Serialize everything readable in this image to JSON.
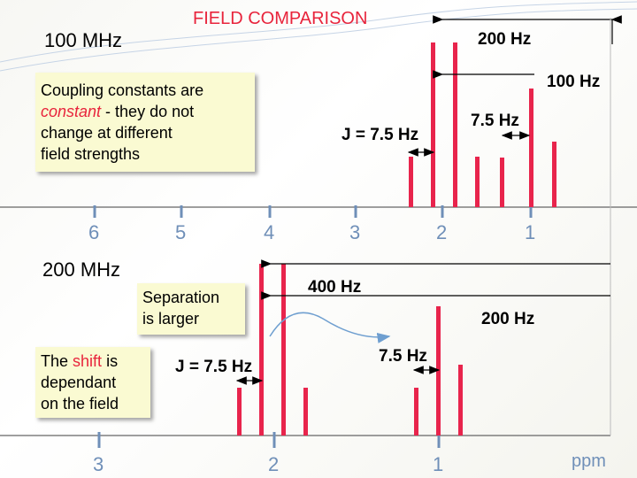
{
  "title": "FIELD COMPARISON",
  "top": {
    "field_label": "100 MHz",
    "width_label": "200 Hz",
    "shift_label": "100 Hz",
    "j_label": "J = 7.5 Hz",
    "split_label": "7.5 Hz",
    "callout": {
      "line1": "Coupling constants are",
      "italic_word": "constant",
      "line2_rest": " - they do not",
      "line3": "change at different",
      "line4": "field strengths"
    },
    "ticks": [
      "6",
      "5",
      "4",
      "3",
      "2",
      "1"
    ]
  },
  "bottom": {
    "field_label": "200 MHz",
    "width_label": "400 Hz",
    "shift_label": "200 Hz",
    "j_label": "J = 7.5 Hz",
    "split_label": "7.5 Hz",
    "separation_callout": {
      "line1": "Separation",
      "line2": "is larger"
    },
    "shift_callout": {
      "word1": "The",
      "red_word": "shift",
      "word2": "is",
      "line2": "dependant",
      "line3": "on the field"
    },
    "ticks": [
      "3",
      "2",
      "1"
    ],
    "unit": "ppm"
  },
  "colors": {
    "peak": "#e8244c",
    "axis": "#666666",
    "tick": "#6f8fb8",
    "callout_bg": "#fafad2",
    "title": "#e8243c",
    "accent_text": "#e8243c",
    "curve": "#6f9fd0"
  }
}
